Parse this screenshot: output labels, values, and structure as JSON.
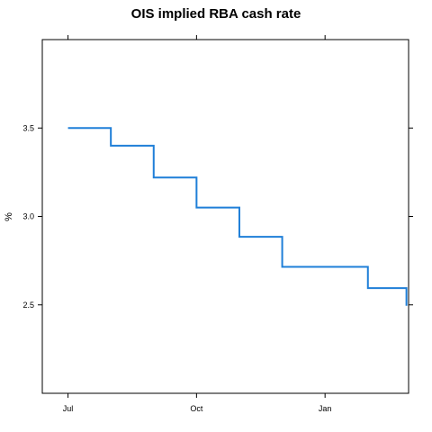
{
  "chart_data": {
    "type": "line",
    "step": true,
    "title": "OIS implied RBA cash rate",
    "ylabel": "%",
    "xlabel": "",
    "ylim": [
      2.0,
      4.0
    ],
    "yticks": [
      2.5,
      3.0,
      3.5
    ],
    "ytick_labels": [
      "2.5",
      "3.0",
      "3.5"
    ],
    "xlim": [
      -0.6,
      7.95
    ],
    "xticks": [
      0,
      3,
      6
    ],
    "xtick_labels": [
      "Jul",
      "Oct",
      "Jan"
    ],
    "x_unit": "months from Jul",
    "grid": false,
    "series": [
      {
        "color": "#1f7fd8",
        "points": [
          {
            "x": 0.0,
            "y": 3.5
          },
          {
            "x": 1.0,
            "y": 3.4
          },
          {
            "x": 2.0,
            "y": 3.22
          },
          {
            "x": 3.0,
            "y": 3.05
          },
          {
            "x": 4.0,
            "y": 2.885
          },
          {
            "x": 5.0,
            "y": 2.715
          },
          {
            "x": 7.0,
            "y": 2.595
          },
          {
            "x": 7.9,
            "y": 2.54
          }
        ]
      }
    ]
  }
}
